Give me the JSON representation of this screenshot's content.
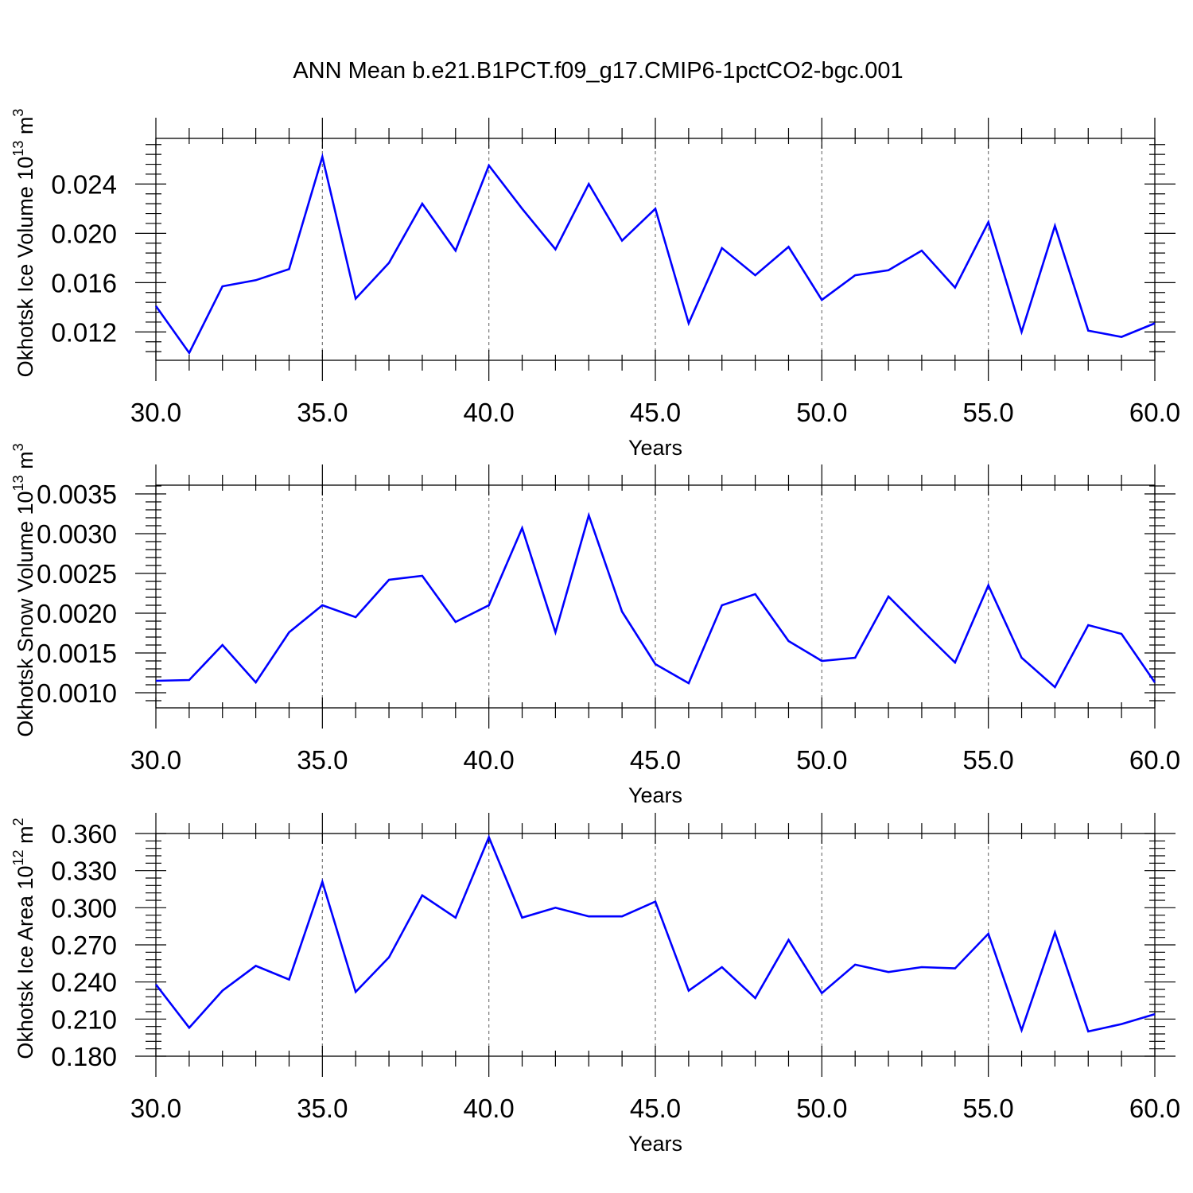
{
  "title": "ANN Mean b.e21.B1PCT.f09_g17.CMIP6-1pctCO2-bgc.001",
  "colors": {
    "series": "#0000ff",
    "axis": "#000000",
    "grid": "#777777"
  },
  "chart_data": [
    {
      "type": "line",
      "ylabel": {
        "text": "Okhotsk Ice Volume 10",
        "exp": "13",
        "unit": " m",
        "unit_exp": "3"
      },
      "xlabel": "Years",
      "xlim": [
        30,
        60
      ],
      "ylim": [
        0.0097,
        0.0277
      ],
      "xticks": [
        30,
        35,
        40,
        45,
        50,
        55,
        60
      ],
      "xtick_labels": [
        "30.0",
        "35.0",
        "40.0",
        "45.0",
        "50.0",
        "55.0",
        "60.0"
      ],
      "yticks": [
        0.012,
        0.016,
        0.02,
        0.024
      ],
      "ytick_labels": [
        "0.012",
        "0.016",
        "0.020",
        "0.024"
      ],
      "grid": "vertical dashed at major x ticks",
      "x": [
        30,
        31,
        32,
        33,
        34,
        35,
        36,
        37,
        38,
        39,
        40,
        41,
        42,
        43,
        44,
        45,
        46,
        47,
        48,
        49,
        50,
        51,
        52,
        53,
        54,
        55,
        56,
        57,
        58,
        59,
        60
      ],
      "values": [
        0.0141,
        0.0103,
        0.0157,
        0.0162,
        0.0171,
        0.0262,
        0.0147,
        0.0176,
        0.0224,
        0.0186,
        0.0255,
        0.022,
        0.0187,
        0.024,
        0.0194,
        0.022,
        0.0127,
        0.0188,
        0.0166,
        0.0189,
        0.0146,
        0.0166,
        0.017,
        0.0186,
        0.0156,
        0.0209,
        0.012,
        0.0206,
        0.0121,
        0.0116,
        0.0127
      ]
    },
    {
      "type": "line",
      "ylabel": {
        "text": "Okhotsk Snow Volume 10",
        "exp": "13",
        "unit": " m",
        "unit_exp": "3"
      },
      "xlabel": "Years",
      "xlim": [
        30,
        60
      ],
      "ylim": [
        0.00081,
        0.00361
      ],
      "xticks": [
        30,
        35,
        40,
        45,
        50,
        55,
        60
      ],
      "xtick_labels": [
        "30.0",
        "35.0",
        "40.0",
        "45.0",
        "50.0",
        "55.0",
        "60.0"
      ],
      "yticks": [
        0.001,
        0.0015,
        0.002,
        0.0025,
        0.003,
        0.0035
      ],
      "ytick_labels": [
        "0.0010",
        "0.0015",
        "0.0020",
        "0.0025",
        "0.0030",
        "0.0035"
      ],
      "grid": "vertical dashed at major x ticks",
      "x": [
        30,
        31,
        32,
        33,
        34,
        35,
        36,
        37,
        38,
        39,
        40,
        41,
        42,
        43,
        44,
        45,
        46,
        47,
        48,
        49,
        50,
        51,
        52,
        53,
        54,
        55,
        56,
        57,
        58,
        59,
        60
      ],
      "values": [
        0.00115,
        0.00116,
        0.0016,
        0.00113,
        0.00176,
        0.0021,
        0.00195,
        0.00242,
        0.00247,
        0.00189,
        0.0021,
        0.00307,
        0.00176,
        0.00323,
        0.00202,
        0.00136,
        0.00112,
        0.0021,
        0.00224,
        0.00165,
        0.0014,
        0.00144,
        0.00221,
        0.00179,
        0.00138,
        0.00235,
        0.00144,
        0.00107,
        0.00185,
        0.00174,
        0.00113
      ]
    },
    {
      "type": "line",
      "ylabel": {
        "text": "Okhotsk Ice Area 10",
        "exp": "12",
        "unit": " m",
        "unit_exp": "2"
      },
      "xlabel": "Years",
      "xlim": [
        30,
        60
      ],
      "ylim": [
        0.18,
        0.36
      ],
      "xticks": [
        30,
        35,
        40,
        45,
        50,
        55,
        60
      ],
      "xtick_labels": [
        "30.0",
        "35.0",
        "40.0",
        "45.0",
        "50.0",
        "55.0",
        "60.0"
      ],
      "yticks": [
        0.18,
        0.21,
        0.24,
        0.27,
        0.3,
        0.33,
        0.36
      ],
      "ytick_labels": [
        "0.180",
        "0.210",
        "0.240",
        "0.270",
        "0.300",
        "0.330",
        "0.360"
      ],
      "grid": "vertical dashed at major x ticks",
      "x": [
        30,
        31,
        32,
        33,
        34,
        35,
        36,
        37,
        38,
        39,
        40,
        41,
        42,
        43,
        44,
        45,
        46,
        47,
        48,
        49,
        50,
        51,
        52,
        53,
        54,
        55,
        56,
        57,
        58,
        59,
        60
      ],
      "values": [
        0.238,
        0.203,
        0.233,
        0.253,
        0.242,
        0.321,
        0.232,
        0.26,
        0.31,
        0.292,
        0.357,
        0.292,
        0.3,
        0.293,
        0.293,
        0.305,
        0.233,
        0.252,
        0.227,
        0.274,
        0.231,
        0.254,
        0.248,
        0.252,
        0.251,
        0.279,
        0.201,
        0.28,
        0.2,
        0.206,
        0.214
      ]
    }
  ]
}
